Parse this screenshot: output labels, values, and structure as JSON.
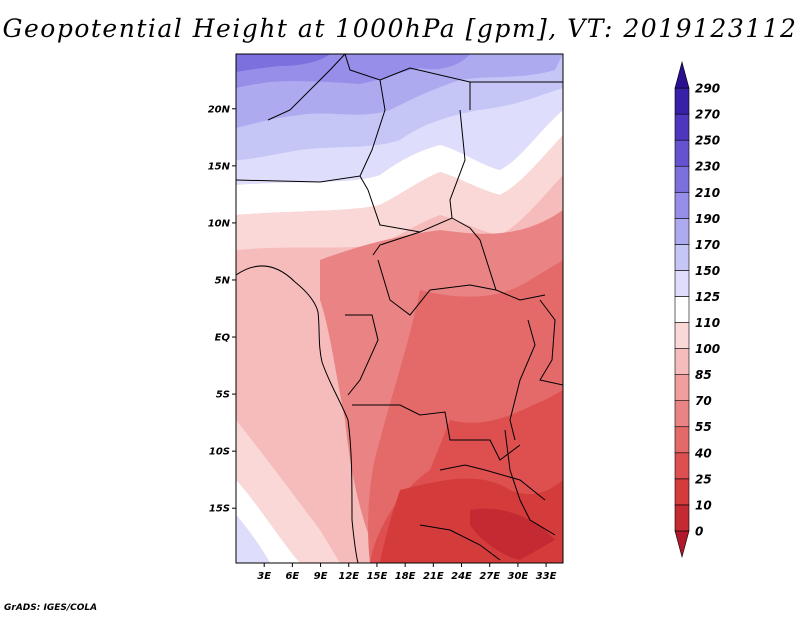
{
  "title": "Geopotential Height at 1000hPa [gpm], VT: 2019123112",
  "credit": "GrADS: IGES/COLA",
  "map": {
    "lat_labels": [
      "20N",
      "15N",
      "10N",
      "5N",
      "EQ",
      "5S",
      "10S",
      "15S"
    ],
    "lon_labels": [
      "3E",
      "6E",
      "9E",
      "12E",
      "15E",
      "18E",
      "21E",
      "24E",
      "27E",
      "30E",
      "33E"
    ],
    "lat_range": [
      -19.8,
      24.8
    ],
    "lon_range": [
      0,
      34.8
    ]
  },
  "colorbar": {
    "levels": [
      "0",
      "10",
      "25",
      "40",
      "55",
      "70",
      "85",
      "100",
      "110",
      "125",
      "150",
      "170",
      "190",
      "210",
      "230",
      "250",
      "270",
      "290"
    ],
    "colors": [
      "#b2182b",
      "#c42a31",
      "#d43c3c",
      "#de5050",
      "#e46a6a",
      "#ea8484",
      "#f09e9e",
      "#f6bcbc",
      "#fbd8d8",
      "#ffffff",
      "#dedefc",
      "#c6c6f6",
      "#aeaaf0",
      "#968ee8",
      "#7c70de",
      "#6552d0",
      "#4e36be",
      "#3a20a8",
      "#2a1090"
    ]
  }
}
